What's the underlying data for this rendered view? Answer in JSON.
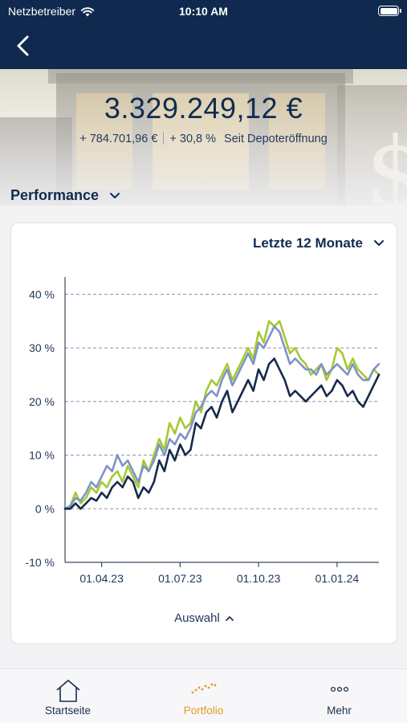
{
  "status_bar": {
    "carrier": "Netzbetreiber",
    "time": "10:10 AM"
  },
  "portfolio": {
    "total_value": "3.329.249,12 €",
    "change_abs": "+ 784.701,96 €",
    "change_pct": "+ 30,8 %",
    "change_label": "Seit Depoteröffnung"
  },
  "section": {
    "title": "Performance"
  },
  "period_selector": {
    "label": "Letzte 12 Monate"
  },
  "auswahl_label": "Auswahl",
  "colors": {
    "navy": "#0f2a4e",
    "green": "#a6c832",
    "blue": "#7e93c6",
    "dark": "#162a4c",
    "accent": "#e39a20"
  },
  "chart_data": {
    "type": "line",
    "ylim": [
      -10,
      42
    ],
    "yticks": [
      -10,
      0,
      10,
      20,
      30,
      40
    ],
    "ytick_labels": [
      "-10 %",
      "0 %",
      "10 %",
      "20 %",
      "30 %",
      "40 %"
    ],
    "xlim": [
      0,
      60
    ],
    "xticks": [
      7,
      22,
      37,
      52
    ],
    "xtick_labels": [
      "01.04.23",
      "01.07.23",
      "01.10.23",
      "01.01.24"
    ],
    "grid": true,
    "series": [
      {
        "color": "#a6c832",
        "values": [
          0,
          0.5,
          3,
          1,
          2,
          4,
          3,
          5,
          4,
          6,
          7,
          5,
          8,
          6,
          4,
          9,
          7,
          10,
          13,
          11,
          16,
          14,
          17,
          15,
          16,
          20,
          18,
          22,
          24,
          23,
          25,
          27,
          24,
          26,
          28,
          30,
          28,
          33,
          31,
          35,
          34,
          35,
          32,
          29,
          30,
          28,
          27,
          25,
          26,
          27,
          24,
          26,
          30,
          29,
          26,
          28,
          26,
          25,
          24,
          26,
          25
        ]
      },
      {
        "color": "#7e93c6",
        "values": [
          0,
          0.5,
          2,
          1.5,
          3,
          5,
          4,
          6,
          8,
          7,
          10,
          8,
          9,
          7,
          5,
          8,
          7,
          9,
          12,
          10,
          13,
          12,
          14,
          13,
          15,
          18,
          19,
          21,
          22,
          21,
          24,
          26,
          23,
          25,
          27,
          29,
          27,
          31,
          30,
          32,
          34,
          33,
          30,
          27,
          28,
          27,
          26,
          26,
          25,
          27,
          25,
          26,
          27,
          26,
          25,
          27,
          25,
          24,
          24,
          26,
          27
        ]
      },
      {
        "color": "#162a4c",
        "values": [
          0,
          0,
          1,
          0,
          1,
          2,
          1.5,
          3,
          2,
          4,
          5,
          4,
          6,
          5,
          2,
          4,
          3,
          5,
          9,
          7,
          11,
          9,
          12,
          10,
          11,
          16,
          15,
          18,
          19,
          17,
          20,
          22,
          18,
          20,
          22,
          24,
          22,
          26,
          24,
          27,
          28,
          26,
          24,
          21,
          22,
          21,
          20,
          21,
          22,
          23,
          21,
          22,
          24,
          23,
          21,
          22,
          20,
          19,
          21,
          23,
          25
        ]
      }
    ]
  },
  "tabs": [
    {
      "label": "Startseite",
      "icon": "home-icon",
      "active": false
    },
    {
      "label": "Portfolio",
      "icon": "chart-dots-icon",
      "active": true
    },
    {
      "label": "Mehr",
      "icon": "more-icon",
      "active": false
    }
  ]
}
